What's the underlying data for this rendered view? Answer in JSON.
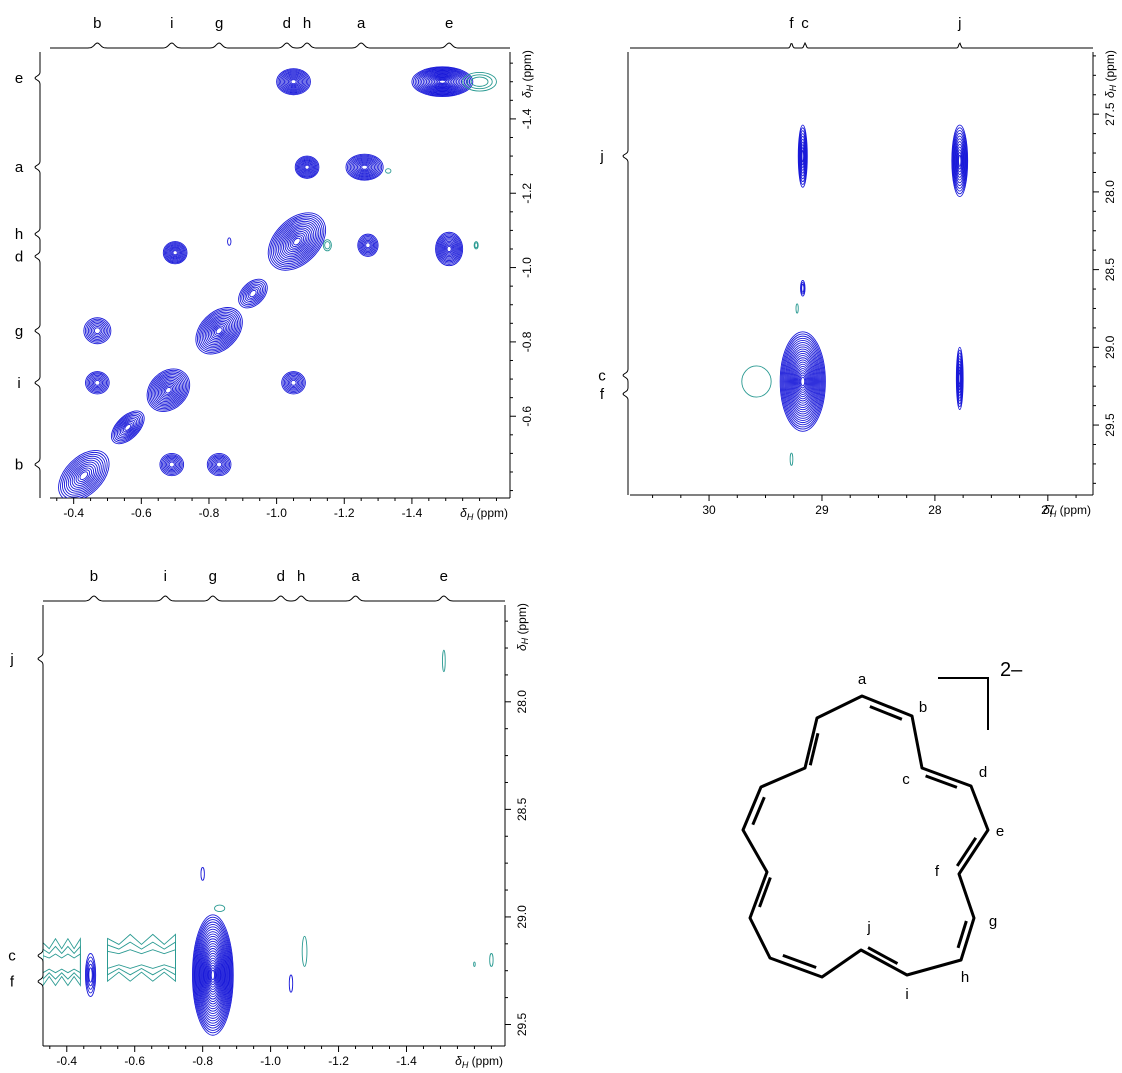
{
  "colors": {
    "positive": "#1a1ad9",
    "negative": "#2a9a92",
    "ink": "#000000"
  },
  "chart_data": [
    {
      "type": "contour",
      "name": "COSY",
      "xaxis": {
        "label_symbol": "δ",
        "label_sub": "H",
        "label_unit": " (ppm)",
        "range": [
          -0.33,
          -1.69
        ],
        "ticks": [
          -0.4,
          -0.6,
          -0.8,
          -1.0,
          -1.2,
          -1.4
        ]
      },
      "yaxis": {
        "label_symbol": "δ",
        "label_sub": "H",
        "label_unit": " (ppm)",
        "range": [
          -1.58,
          -0.38
        ],
        "ticks": [
          -1.4,
          -1.2,
          -1.0,
          -0.8,
          -0.6
        ]
      },
      "top_labels": [
        {
          "t": "b",
          "x": -0.47
        },
        {
          "t": "i",
          "x": -0.69
        },
        {
          "t": "g",
          "x": -0.83
        },
        {
          "t": "d",
          "x": -1.03
        },
        {
          "t": "h",
          "x": -1.09
        },
        {
          "t": "a",
          "x": -1.25
        },
        {
          "t": "e",
          "x": -1.51
        }
      ],
      "side_labels": [
        {
          "t": "e",
          "y": -1.51
        },
        {
          "t": "a",
          "y": -1.27
        },
        {
          "t": "h",
          "y": -1.09
        },
        {
          "t": "d",
          "y": -1.03
        },
        {
          "t": "g",
          "y": -0.83
        },
        {
          "t": "i",
          "y": -0.69
        },
        {
          "t": "b",
          "y": -0.47
        }
      ],
      "peaks": [
        {
          "x": -1.05,
          "y": -1.5,
          "rx": 0.05,
          "ry": 0.035,
          "n": 12,
          "c": "pos"
        },
        {
          "x": -1.49,
          "y": -1.5,
          "rx": 0.09,
          "ry": 0.04,
          "n": 18,
          "c": "pos"
        },
        {
          "x": -1.6,
          "y": -1.5,
          "rx": 0.05,
          "ry": 0.025,
          "n": 3,
          "c": "neg"
        },
        {
          "x": -1.09,
          "y": -1.27,
          "rx": 0.035,
          "ry": 0.03,
          "n": 10,
          "c": "pos"
        },
        {
          "x": -1.26,
          "y": -1.27,
          "rx": 0.055,
          "ry": 0.035,
          "n": 12,
          "c": "pos"
        },
        {
          "x": -1.33,
          "y": -1.26,
          "rx": 0.008,
          "ry": 0.006,
          "n": 1,
          "c": "neg"
        },
        {
          "x": -0.7,
          "y": -1.04,
          "rx": 0.035,
          "ry": 0.03,
          "n": 10,
          "c": "pos"
        },
        {
          "x": -0.86,
          "y": -1.07,
          "rx": 0.005,
          "ry": 0.01,
          "n": 1,
          "c": "pos"
        },
        {
          "x": -1.27,
          "y": -1.06,
          "rx": 0.03,
          "ry": 0.03,
          "n": 8,
          "c": "pos"
        },
        {
          "x": -1.51,
          "y": -1.05,
          "rx": 0.04,
          "ry": 0.045,
          "n": 12,
          "c": "pos"
        },
        {
          "x": -1.15,
          "y": -1.06,
          "rx": 0.012,
          "ry": 0.015,
          "n": 2,
          "c": "neg"
        },
        {
          "x": -1.59,
          "y": -1.06,
          "rx": 0.006,
          "ry": 0.01,
          "n": 2,
          "c": "neg"
        },
        {
          "x": -0.47,
          "y": -0.83,
          "rx": 0.04,
          "ry": 0.035,
          "n": 8,
          "c": "pos"
        },
        {
          "x": -0.47,
          "y": -0.69,
          "rx": 0.035,
          "ry": 0.03,
          "n": 8,
          "c": "pos"
        },
        {
          "x": -1.05,
          "y": -0.69,
          "rx": 0.035,
          "ry": 0.03,
          "n": 8,
          "c": "pos"
        },
        {
          "x": -0.69,
          "y": -0.47,
          "rx": 0.035,
          "ry": 0.03,
          "n": 8,
          "c": "pos"
        },
        {
          "x": -0.83,
          "y": -0.47,
          "rx": 0.035,
          "ry": 0.03,
          "n": 8,
          "c": "pos"
        }
      ],
      "diagonal": [
        {
          "x": -0.43,
          "y": -0.44,
          "rx": 0.09,
          "ry": 0.05,
          "n": 12
        },
        {
          "x": -0.56,
          "y": -0.57,
          "rx": 0.06,
          "ry": 0.03,
          "n": 10
        },
        {
          "x": -0.68,
          "y": -0.67,
          "rx": 0.07,
          "ry": 0.05,
          "n": 14
        },
        {
          "x": -0.83,
          "y": -0.83,
          "rx": 0.08,
          "ry": 0.05,
          "n": 14
        },
        {
          "x": -0.93,
          "y": -0.93,
          "rx": 0.05,
          "ry": 0.03,
          "n": 8
        },
        {
          "x": -1.06,
          "y": -1.07,
          "rx": 0.1,
          "ry": 0.06,
          "n": 16
        }
      ]
    },
    {
      "type": "contour",
      "name": "HSQC",
      "xaxis": {
        "label_symbol": "δ",
        "label_sub": "H",
        "label_unit": " (ppm)",
        "range": [
          30.7,
          26.6
        ],
        "ticks": [
          30,
          29,
          28,
          27
        ]
      },
      "yaxis": {
        "label_symbol": "δ",
        "label_sub": "H",
        "label_unit": " (ppm)",
        "range": [
          27.1,
          29.95
        ],
        "ticks": [
          27.5,
          28.0,
          28.5,
          29.0,
          29.5
        ]
      },
      "top_labels": [
        {
          "t": "f",
          "x": 29.27
        },
        {
          "t": "c",
          "x": 29.15
        },
        {
          "t": "j",
          "x": 27.78
        }
      ],
      "side_labels": [
        {
          "t": "j",
          "y": 27.77
        },
        {
          "t": "c",
          "y": 29.18
        },
        {
          "t": "f",
          "y": 29.3
        }
      ],
      "peaks": [
        {
          "x": 29.17,
          "y": 27.77,
          "rx": 0.04,
          "ry": 0.2,
          "n": 10,
          "c": "pos"
        },
        {
          "x": 27.78,
          "y": 27.8,
          "rx": 0.07,
          "ry": 0.23,
          "n": 12,
          "c": "pos"
        },
        {
          "x": 29.17,
          "y": 28.62,
          "rx": 0.02,
          "ry": 0.05,
          "n": 3,
          "c": "pos"
        },
        {
          "x": 29.17,
          "y": 29.22,
          "rx": 0.2,
          "ry": 0.32,
          "n": 22,
          "c": "pos"
        },
        {
          "x": 29.58,
          "y": 29.22,
          "rx": 0.13,
          "ry": 0.1,
          "n": 1,
          "c": "neg"
        },
        {
          "x": 29.22,
          "y": 28.75,
          "rx": 0.01,
          "ry": 0.03,
          "n": 1,
          "c": "neg"
        },
        {
          "x": 29.27,
          "y": 29.72,
          "rx": 0.012,
          "ry": 0.04,
          "n": 1,
          "c": "neg"
        },
        {
          "x": 27.78,
          "y": 29.2,
          "rx": 0.03,
          "ry": 0.2,
          "n": 10,
          "c": "pos"
        }
      ]
    },
    {
      "type": "contour",
      "name": "HSQC-sidebands",
      "xaxis": {
        "label_symbol": "δ",
        "label_sub": "H",
        "label_unit": " (ppm)",
        "range": [
          -0.33,
          -1.69
        ],
        "ticks": [
          -0.4,
          -0.6,
          -0.8,
          -1.0,
          -1.2,
          -1.4
        ]
      },
      "yaxis": {
        "label_symbol": "δ",
        "label_sub": "H",
        "label_unit": " (ppm)",
        "range": [
          27.55,
          29.6
        ],
        "ticks": [
          28.0,
          28.5,
          29.0,
          29.5
        ]
      },
      "top_labels": [
        {
          "t": "b",
          "x": -0.48
        },
        {
          "t": "i",
          "x": -0.69
        },
        {
          "t": "g",
          "x": -0.83
        },
        {
          "t": "d",
          "x": -1.03
        },
        {
          "t": "h",
          "x": -1.09
        },
        {
          "t": "a",
          "x": -1.25
        },
        {
          "t": "e",
          "x": -1.51
        }
      ],
      "side_labels": [
        {
          "t": "j",
          "y": 27.8
        },
        {
          "t": "c",
          "y": 29.18
        },
        {
          "t": "f",
          "y": 29.3
        }
      ],
      "peaks": [
        {
          "x": -0.47,
          "y": 29.27,
          "rx": 0.015,
          "ry": 0.1,
          "n": 5,
          "c": "pos"
        },
        {
          "x": -0.83,
          "y": 29.27,
          "rx": 0.06,
          "ry": 0.28,
          "n": 24,
          "c": "pos"
        },
        {
          "x": -0.8,
          "y": 28.8,
          "rx": 0.005,
          "ry": 0.03,
          "n": 1,
          "c": "pos"
        },
        {
          "x": -1.06,
          "y": 29.31,
          "rx": 0.005,
          "ry": 0.04,
          "n": 1,
          "c": "pos"
        },
        {
          "x": -1.1,
          "y": 29.16,
          "rx": 0.007,
          "ry": 0.07,
          "n": 1,
          "c": "neg"
        },
        {
          "x": -1.51,
          "y": 27.81,
          "rx": 0.004,
          "ry": 0.05,
          "n": 1,
          "c": "neg"
        },
        {
          "x": -1.65,
          "y": 29.2,
          "rx": 0.005,
          "ry": 0.03,
          "n": 1,
          "c": "neg"
        },
        {
          "x": -1.6,
          "y": 29.22,
          "rx": 0.002,
          "ry": 0.01,
          "n": 1,
          "c": "neg"
        },
        {
          "x": -0.85,
          "y": 28.96,
          "rx": 0.015,
          "ry": 0.015,
          "n": 1,
          "c": "neg"
        }
      ],
      "bands": [
        {
          "x1": -0.33,
          "x2": -0.44,
          "y": 29.22,
          "h": 0.1
        },
        {
          "x1": -0.52,
          "x2": -0.72,
          "y": 29.2,
          "h": 0.1
        }
      ]
    }
  ],
  "molecule": {
    "charge": "2–",
    "atom_labels": [
      "a",
      "b",
      "c",
      "d",
      "e",
      "f",
      "g",
      "h",
      "i",
      "j"
    ]
  }
}
